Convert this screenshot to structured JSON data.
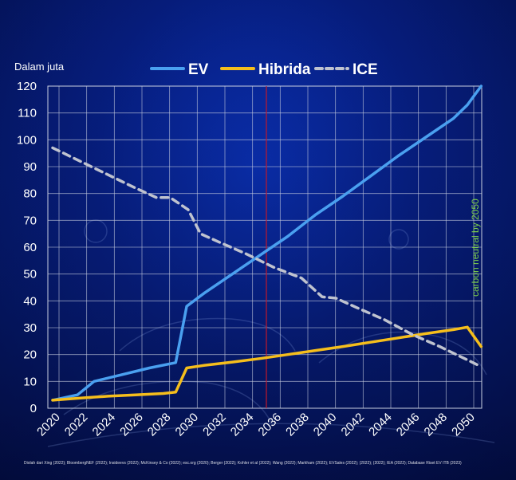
{
  "chart_data": {
    "type": "line",
    "unit_label": "Dalam juta",
    "ylim": [
      0,
      120
    ],
    "yticks": [
      0,
      10,
      20,
      30,
      40,
      50,
      60,
      70,
      80,
      90,
      100,
      110,
      120
    ],
    "xlim": [
      2020,
      2050
    ],
    "xticks": [
      2020,
      2022,
      2024,
      2026,
      2028,
      2030,
      2032,
      2034,
      2036,
      2038,
      2040,
      2042,
      2044,
      2046,
      2048,
      2050
    ],
    "grid": true,
    "legend_position": "top",
    "reference_line": {
      "x": 2035,
      "color": "#c0182a"
    },
    "side_annotation": "carbon neutral by 2050",
    "source_note": "Diolah dari Xing (2022); BloombergNEF (2022); Insideevs (2022); McKinsey & Co (2022); esc.org (2020); Berger (2022); Kohler et al (2022); Wang (2022); Markham (2022); EVSales (2022); (2022); (2022); IEA (2022); Database Riset EV ITB (2023)",
    "series": [
      {
        "name": "EV",
        "color": "#4aa0f0",
        "style": "solid",
        "points": [
          [
            2020,
            3
          ],
          [
            2021.8,
            5
          ],
          [
            2023,
            10
          ],
          [
            2025,
            12.5
          ],
          [
            2027,
            15
          ],
          [
            2028.9,
            17
          ],
          [
            2029.7,
            38
          ],
          [
            2031,
            43
          ],
          [
            2033,
            50
          ],
          [
            2035,
            57
          ],
          [
            2037,
            64
          ],
          [
            2039,
            72
          ],
          [
            2041,
            79
          ],
          [
            2043,
            86.5
          ],
          [
            2045,
            94
          ],
          [
            2047,
            101
          ],
          [
            2049,
            108
          ],
          [
            2050,
            113
          ],
          [
            2051,
            120
          ]
        ]
      },
      {
        "name": "Hibrida",
        "color": "#f5be1c",
        "style": "solid",
        "points": [
          [
            2020,
            3
          ],
          [
            2022,
            3.8
          ],
          [
            2024,
            4.5
          ],
          [
            2026,
            5
          ],
          [
            2028,
            5.5
          ],
          [
            2028.9,
            6
          ],
          [
            2029.7,
            15
          ],
          [
            2031,
            16
          ],
          [
            2033,
            17.2
          ],
          [
            2035,
            18.5
          ],
          [
            2037,
            20
          ],
          [
            2039,
            21.5
          ],
          [
            2041,
            23
          ],
          [
            2043,
            24.6
          ],
          [
            2045,
            26.2
          ],
          [
            2047,
            27.8
          ],
          [
            2049,
            29.3
          ],
          [
            2050,
            30.2
          ],
          [
            2051,
            23
          ]
        ]
      },
      {
        "name": "ICE",
        "color": "#bfc3cf",
        "style": "dashed",
        "points": [
          [
            2020,
            97
          ],
          [
            2022,
            92
          ],
          [
            2024,
            87
          ],
          [
            2026,
            82
          ],
          [
            2027.5,
            78.5
          ],
          [
            2028.5,
            78.5
          ],
          [
            2029.8,
            74
          ],
          [
            2030.7,
            65
          ],
          [
            2032,
            62
          ],
          [
            2034,
            57.5
          ],
          [
            2036,
            52.5
          ],
          [
            2038,
            48.5
          ],
          [
            2039.5,
            41.5
          ],
          [
            2040.5,
            41
          ],
          [
            2042,
            37.5
          ],
          [
            2044,
            33
          ],
          [
            2046,
            27.5
          ],
          [
            2048,
            23
          ],
          [
            2050,
            18
          ],
          [
            2051,
            15.5
          ]
        ]
      }
    ]
  }
}
